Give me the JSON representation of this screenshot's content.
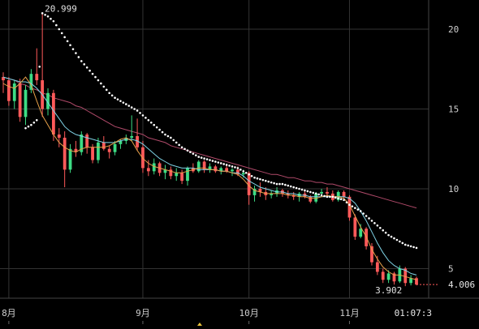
{
  "chart_data": {
    "type": "candlestick",
    "title": "",
    "xlabel": "",
    "ylabel": "",
    "ylim": [
      3.5,
      22
    ],
    "yticks": [
      5,
      10,
      15,
      20
    ],
    "xtick_labels": [
      "8月",
      "9月",
      "10月",
      "11月"
    ],
    "last_time_label": "01:07:3",
    "max_label": "20.999",
    "min_label": "3.902",
    "last_price_label": "4.006",
    "grid": true,
    "colors": {
      "up": "#3ddc84",
      "down": "#ff5a5a",
      "ma_fast": "#e8a14a",
      "ma_mid": "#7fd3e6",
      "ma_slow": "#b04a6a",
      "psar": "#ffffff",
      "grid": "#333333",
      "marker": "#e8c23a"
    },
    "candles": [
      [
        17.0,
        17.3,
        16.0,
        16.8
      ],
      [
        16.8,
        17.0,
        15.2,
        15.5
      ],
      [
        15.5,
        16.8,
        15.0,
        16.6
      ],
      [
        16.6,
        16.9,
        14.2,
        14.5
      ],
      [
        14.5,
        16.5,
        14.0,
        16.2
      ],
      [
        16.2,
        17.5,
        16.0,
        17.2
      ],
      [
        17.2,
        18.8,
        16.5,
        16.8
      ],
      [
        16.8,
        20.999,
        14.5,
        15.0
      ],
      [
        15.0,
        16.3,
        14.6,
        16.0
      ],
      [
        16.0,
        16.2,
        13.0,
        13.4
      ],
      [
        13.4,
        13.8,
        12.6,
        13.2
      ],
      [
        13.2,
        13.6,
        10.1,
        11.2
      ],
      [
        11.2,
        12.8,
        11.0,
        12.5
      ],
      [
        12.5,
        13.0,
        12.0,
        12.3
      ],
      [
        12.3,
        13.6,
        12.1,
        13.4
      ],
      [
        13.4,
        13.5,
        12.2,
        12.6
      ],
      [
        12.6,
        12.8,
        11.6,
        11.8
      ],
      [
        11.8,
        13.2,
        11.6,
        12.9
      ],
      [
        12.9,
        13.3,
        12.4,
        12.5
      ],
      [
        12.5,
        12.7,
        11.9,
        12.3
      ],
      [
        12.3,
        13.0,
        12.1,
        12.8
      ],
      [
        12.8,
        13.1,
        12.5,
        13.0
      ],
      [
        13.0,
        13.4,
        12.8,
        13.2
      ],
      [
        13.2,
        14.6,
        13.0,
        13.3
      ],
      [
        13.3,
        14.4,
        12.4,
        12.6
      ],
      [
        12.6,
        13.0,
        11.0,
        11.3
      ],
      [
        11.3,
        11.8,
        10.8,
        11.1
      ],
      [
        11.1,
        11.9,
        10.9,
        11.6
      ],
      [
        11.6,
        11.7,
        10.8,
        11.0
      ],
      [
        11.0,
        11.5,
        10.6,
        11.2
      ],
      [
        11.2,
        11.4,
        10.6,
        10.8
      ],
      [
        10.8,
        11.3,
        10.5,
        11.0
      ],
      [
        11.0,
        11.2,
        10.3,
        10.5
      ],
      [
        10.5,
        11.4,
        10.2,
        11.3
      ],
      [
        11.3,
        11.6,
        11.0,
        11.1
      ],
      [
        11.1,
        11.8,
        11.0,
        11.7
      ],
      [
        11.7,
        11.8,
        11.0,
        11.2
      ],
      [
        11.2,
        11.6,
        11.0,
        11.4
      ],
      [
        11.4,
        11.5,
        11.0,
        11.1
      ],
      [
        11.1,
        11.4,
        10.9,
        11.3
      ],
      [
        11.3,
        11.5,
        11.0,
        11.1
      ],
      [
        11.1,
        11.3,
        10.8,
        11.2
      ],
      [
        11.2,
        11.4,
        10.8,
        10.9
      ],
      [
        10.9,
        11.2,
        10.7,
        11.0
      ],
      [
        11.0,
        11.1,
        9.0,
        9.6
      ],
      [
        9.6,
        10.2,
        9.2,
        10.0
      ],
      [
        10.0,
        10.4,
        9.5,
        9.8
      ],
      [
        9.8,
        10.1,
        9.3,
        9.6
      ],
      [
        9.6,
        9.9,
        9.4,
        9.7
      ],
      [
        9.7,
        10.1,
        9.5,
        9.9
      ],
      [
        9.9,
        10.0,
        9.5,
        9.7
      ],
      [
        9.7,
        9.9,
        9.4,
        9.6
      ],
      [
        9.6,
        9.8,
        9.3,
        9.5
      ],
      [
        9.5,
        9.8,
        9.2,
        9.7
      ],
      [
        9.7,
        9.9,
        9.4,
        9.5
      ],
      [
        9.5,
        9.6,
        9.1,
        9.2
      ],
      [
        9.2,
        9.8,
        9.1,
        9.7
      ],
      [
        9.7,
        10.0,
        9.5,
        9.8
      ],
      [
        9.8,
        10.1,
        9.6,
        9.7
      ],
      [
        9.7,
        9.9,
        9.2,
        9.3
      ],
      [
        9.3,
        9.9,
        9.2,
        9.8
      ],
      [
        9.8,
        9.9,
        9.4,
        9.5
      ],
      [
        9.5,
        9.6,
        8.0,
        8.2
      ],
      [
        8.2,
        8.4,
        6.8,
        7.0
      ],
      [
        7.0,
        7.8,
        6.9,
        7.5
      ],
      [
        7.5,
        7.6,
        6.2,
        6.4
      ],
      [
        6.4,
        6.6,
        5.2,
        5.4
      ],
      [
        5.4,
        5.8,
        4.6,
        4.8
      ],
      [
        4.8,
        5.0,
        4.1,
        4.3
      ],
      [
        4.3,
        4.9,
        4.1,
        4.7
      ],
      [
        4.7,
        4.8,
        4.0,
        4.2
      ],
      [
        4.2,
        5.2,
        4.1,
        5.0
      ],
      [
        5.0,
        5.1,
        3.902,
        4.1
      ],
      [
        4.1,
        4.6,
        3.95,
        4.4
      ],
      [
        4.4,
        4.5,
        3.95,
        4.006
      ]
    ],
    "ma_fast": [
      16.6,
      16.4,
      16.3,
      16.6,
      17.0,
      16.5,
      15.5,
      14.6,
      14.0,
      13.4,
      12.9,
      12.6,
      12.4,
      12.3,
      12.5,
      12.6,
      12.6,
      12.6,
      12.6,
      12.7,
      12.9,
      13.1,
      13.2,
      13.0,
      12.4,
      11.9,
      11.6,
      11.4,
      11.3,
      11.2,
      11.1,
      11.0,
      11.0,
      11.1,
      11.2,
      11.3,
      11.3,
      11.2,
      11.2,
      11.1,
      11.1,
      11.0,
      10.9,
      10.6,
      10.2,
      9.9,
      9.8,
      9.7,
      9.7,
      9.7,
      9.7,
      9.6,
      9.6,
      9.5,
      9.5,
      9.4,
      9.4,
      9.5,
      9.6,
      9.5,
      9.5,
      9.4,
      9.0,
      8.3,
      7.6,
      7.0,
      6.2,
      5.6,
      5.1,
      4.8,
      4.6,
      4.6,
      4.5,
      4.4,
      4.3
    ],
    "ma_mid": [
      17.0,
      16.9,
      16.8,
      16.7,
      16.7,
      16.6,
      16.3,
      15.9,
      15.4,
      14.9,
      14.4,
      13.9,
      13.6,
      13.4,
      13.3,
      13.2,
      13.1,
      13.0,
      12.9,
      12.9,
      12.9,
      13.0,
      13.1,
      13.1,
      13.0,
      12.8,
      12.5,
      12.2,
      11.9,
      11.7,
      11.5,
      11.4,
      11.3,
      11.3,
      11.3,
      11.2,
      11.2,
      11.2,
      11.2,
      11.1,
      11.1,
      11.0,
      11.0,
      10.8,
      10.5,
      10.3,
      10.1,
      10.0,
      9.9,
      9.8,
      9.8,
      9.7,
      9.7,
      9.6,
      9.6,
      9.5,
      9.5,
      9.5,
      9.5,
      9.5,
      9.5,
      9.5,
      9.4,
      9.1,
      8.6,
      8.0,
      7.3,
      6.6,
      6.0,
      5.5,
      5.2,
      5.0,
      4.9,
      4.7,
      4.6
    ],
    "ma_slow": [
      17.0,
      16.9,
      16.8,
      16.6,
      16.5,
      16.3,
      16.2,
      16.0,
      15.9,
      15.7,
      15.6,
      15.5,
      15.4,
      15.2,
      15.1,
      14.9,
      14.7,
      14.5,
      14.3,
      14.1,
      13.9,
      13.8,
      13.7,
      13.6,
      13.5,
      13.4,
      13.2,
      13.1,
      13.0,
      12.9,
      12.7,
      12.6,
      12.5,
      12.4,
      12.3,
      12.2,
      12.1,
      12.0,
      11.9,
      11.8,
      11.7,
      11.6,
      11.5,
      11.4,
      11.3,
      11.2,
      11.1,
      11.0,
      10.9,
      10.9,
      10.8,
      10.7,
      10.7,
      10.6,
      10.5,
      10.5,
      10.4,
      10.4,
      10.3,
      10.3,
      10.2,
      10.1,
      10.0,
      9.9,
      9.8,
      9.7,
      9.6,
      9.5,
      9.4,
      9.3,
      9.2,
      9.1,
      9.0,
      8.9,
      8.8
    ],
    "psar": [
      null,
      null,
      null,
      null,
      13.8,
      14.0,
      14.3,
      20.999,
      20.8,
      20.5,
      20.0,
      19.5,
      19.0,
      18.5,
      18.0,
      17.6,
      17.2,
      16.8,
      16.4,
      16.0,
      15.7,
      15.5,
      15.3,
      15.1,
      14.9,
      14.6,
      14.3,
      14.0,
      13.7,
      13.4,
      13.2,
      12.9,
      12.6,
      12.4,
      12.2,
      12.0,
      11.9,
      11.8,
      11.7,
      11.6,
      11.5,
      11.4,
      11.3,
      11.1,
      10.9,
      10.7,
      10.6,
      10.5,
      10.4,
      10.3,
      10.3,
      10.2,
      10.1,
      10.0,
      9.9,
      9.8,
      9.7,
      9.6,
      9.5,
      9.5,
      9.4,
      9.3,
      9.0,
      8.8,
      8.6,
      8.3,
      8.0,
      7.7,
      7.4,
      7.1,
      6.9,
      6.7,
      6.5,
      6.4,
      6.3
    ],
    "month_start_indices": [
      1,
      25,
      44,
      62
    ]
  }
}
